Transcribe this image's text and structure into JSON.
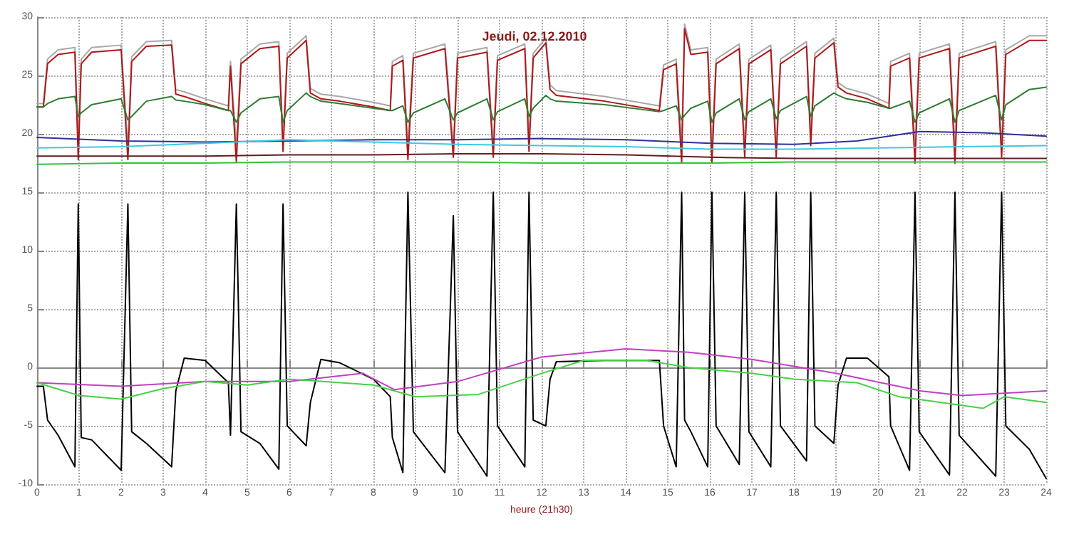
{
  "chart_data": {
    "type": "line",
    "title": "Jeudi, 02.12.2010",
    "xlabel": "heure (21h30)",
    "xlim": [
      0,
      24
    ],
    "xticks": [
      0,
      1,
      2,
      3,
      4,
      5,
      6,
      7,
      8,
      9,
      10,
      11,
      12,
      13,
      14,
      15,
      16,
      17,
      18,
      19,
      20,
      21,
      22,
      23,
      24
    ],
    "ylim": [
      -10,
      30
    ],
    "yticks": [
      -10,
      -5,
      0,
      5,
      10,
      15,
      20,
      25,
      30
    ],
    "grid": true,
    "marker": "none",
    "line_style": "solid",
    "series": [
      {
        "color": "#a8a8a8",
        "x": [
          0,
          0.15,
          0.25,
          0.5,
          0.9,
          0.98,
          1.05,
          1.3,
          2.0,
          2.16,
          2.25,
          2.6,
          3.2,
          3.3,
          3.5,
          4.0,
          4.55,
          4.6,
          4.74,
          4.85,
          5.3,
          5.75,
          5.85,
          5.95,
          6.4,
          6.5,
          6.75,
          7.2,
          8.0,
          8.4,
          8.45,
          8.7,
          8.82,
          8.95,
          9.7,
          9.9,
          10.0,
          10.7,
          10.85,
          10.95,
          11.6,
          11.7,
          11.8,
          12.1,
          12.2,
          12.35,
          13.5,
          14.8,
          14.9,
          15.2,
          15.33,
          15.4,
          15.55,
          15.95,
          16.05,
          16.15,
          16.7,
          16.83,
          16.93,
          17.45,
          17.58,
          17.68,
          18.3,
          18.4,
          18.5,
          18.95,
          19.05,
          19.25,
          19.75,
          20.26,
          20.3,
          20.75,
          20.88,
          20.98,
          21.7,
          21.83,
          21.93,
          22.8,
          22.94,
          23.04,
          23.6,
          24
        ],
        "values": [
          22.6,
          22.6,
          26.4,
          27.2,
          27.4,
          19,
          26.4,
          27.4,
          27.6,
          19,
          26.6,
          27.9,
          28,
          23.8,
          23.6,
          23,
          22.4,
          26.2,
          19,
          26.4,
          27.7,
          27.9,
          19.5,
          26.9,
          28.4,
          23.9,
          23.4,
          23.2,
          22.7,
          22.4,
          26.2,
          26.7,
          19,
          26.9,
          27.7,
          19,
          26.9,
          27.4,
          19,
          26.7,
          27.7,
          19.5,
          26.9,
          28.2,
          24.2,
          23.7,
          23.2,
          22.4,
          25.9,
          26.4,
          19,
          29.4,
          27.2,
          27.4,
          19,
          26.4,
          27.7,
          19,
          26.4,
          27.6,
          19,
          26.4,
          27.9,
          20,
          26.9,
          28.2,
          24.4,
          23.9,
          23.4,
          22.6,
          26.2,
          26.9,
          19,
          26.9,
          27.7,
          19,
          26.9,
          27.9,
          19,
          27.2,
          28.4,
          28.4
        ]
      },
      {
        "color": "#b01818",
        "x": [
          0,
          0.15,
          0.25,
          0.5,
          0.9,
          0.98,
          1.05,
          1.3,
          2.0,
          2.16,
          2.25,
          2.6,
          3.2,
          3.3,
          3.5,
          4.0,
          4.55,
          4.6,
          4.74,
          4.85,
          5.3,
          5.75,
          5.85,
          5.95,
          6.4,
          6.5,
          6.75,
          7.2,
          8.0,
          8.4,
          8.45,
          8.7,
          8.82,
          8.95,
          9.7,
          9.9,
          10.0,
          10.7,
          10.85,
          10.95,
          11.6,
          11.7,
          11.8,
          12.1,
          12.2,
          12.35,
          13.5,
          14.8,
          14.9,
          15.2,
          15.33,
          15.4,
          15.55,
          15.95,
          16.05,
          16.15,
          16.7,
          16.83,
          16.93,
          17.45,
          17.58,
          17.68,
          18.3,
          18.4,
          18.5,
          18.95,
          19.05,
          19.25,
          19.75,
          20.26,
          20.3,
          20.75,
          20.88,
          20.98,
          21.7,
          21.83,
          21.93,
          22.8,
          22.94,
          23.04,
          23.6,
          24
        ],
        "values": [
          22.3,
          22.3,
          26,
          26.8,
          27,
          17.8,
          26,
          27,
          27.2,
          17.8,
          26.2,
          27.5,
          27.6,
          23.4,
          23.2,
          22.6,
          22,
          25.8,
          17.6,
          26,
          27.3,
          27.5,
          18.5,
          26.5,
          28,
          23.5,
          23,
          22.8,
          22.3,
          22,
          25.8,
          26.3,
          17.8,
          26.5,
          27.3,
          18,
          26.5,
          27,
          18,
          26.3,
          27.3,
          18.5,
          26.5,
          27.8,
          23.8,
          23.3,
          22.8,
          22,
          25.5,
          26,
          17.5,
          29,
          26.8,
          27,
          17.5,
          26,
          27.3,
          18,
          26,
          27.2,
          18,
          26,
          27.5,
          19,
          26.5,
          27.8,
          24,
          23.5,
          23,
          22.2,
          25.8,
          26.5,
          17.5,
          26.5,
          27.3,
          17.5,
          26.5,
          27.5,
          18,
          26.8,
          28,
          28
        ]
      },
      {
        "color": "#2e7d32",
        "x": [
          0,
          0.15,
          0.25,
          0.5,
          0.9,
          0.98,
          1.05,
          1.3,
          2.0,
          2.16,
          2.25,
          2.6,
          3.2,
          3.3,
          3.5,
          4.0,
          4.55,
          4.6,
          4.74,
          4.85,
          5.3,
          5.75,
          5.85,
          5.95,
          6.4,
          6.5,
          6.75,
          7.2,
          8.0,
          8.4,
          8.45,
          8.7,
          8.82,
          8.95,
          9.7,
          9.9,
          10.0,
          10.7,
          10.85,
          10.95,
          11.6,
          11.7,
          11.8,
          12.1,
          12.2,
          12.35,
          13.5,
          14.8,
          14.9,
          15.2,
          15.33,
          15.4,
          15.55,
          15.95,
          16.05,
          16.15,
          16.7,
          16.83,
          16.93,
          17.45,
          17.58,
          17.68,
          18.3,
          18.4,
          18.5,
          18.95,
          19.05,
          19.25,
          19.75,
          20.26,
          20.3,
          20.75,
          20.88,
          20.98,
          21.7,
          21.83,
          21.93,
          22.8,
          22.94,
          23.04,
          23.6,
          24
        ],
        "values": [
          22.3,
          22.3,
          22.6,
          23,
          23.2,
          21.5,
          21.8,
          22.5,
          23,
          21.2,
          21.5,
          22.8,
          23.2,
          22.9,
          22.8,
          22.5,
          22,
          22,
          21,
          21.8,
          23,
          23.2,
          21,
          22,
          23.5,
          23.2,
          22.8,
          22.6,
          22.2,
          22,
          22,
          22.4,
          21,
          21.8,
          23,
          21.2,
          21.8,
          23,
          21.2,
          21.9,
          23,
          21.5,
          22.2,
          23.3,
          23,
          22.8,
          22.5,
          21.9,
          22,
          22.4,
          21.2,
          21.6,
          22.2,
          22.8,
          21,
          21.8,
          23,
          21.2,
          21.9,
          23,
          21.3,
          22,
          23.2,
          21.5,
          22.4,
          23.5,
          23.3,
          23,
          22.7,
          22.2,
          22.2,
          22.8,
          21,
          21.8,
          23,
          21,
          22,
          23.3,
          21.2,
          22.5,
          23.8,
          24
        ]
      },
      {
        "color": "#000000",
        "x": [
          0,
          0.15,
          0.25,
          0.5,
          0.9,
          0.98,
          1.05,
          1.3,
          2.0,
          2.16,
          2.25,
          2.6,
          3.2,
          3.3,
          3.5,
          4.0,
          4.55,
          4.6,
          4.74,
          4.85,
          5.3,
          5.75,
          5.85,
          5.95,
          6.4,
          6.5,
          6.75,
          7.2,
          8.0,
          8.4,
          8.45,
          8.7,
          8.82,
          8.95,
          9.7,
          9.9,
          10.0,
          10.7,
          10.85,
          10.95,
          11.6,
          11.7,
          11.8,
          12.1,
          12.2,
          12.35,
          13.5,
          14.8,
          14.9,
          15.2,
          15.33,
          15.4,
          15.55,
          15.95,
          16.05,
          16.15,
          16.7,
          16.83,
          16.93,
          17.45,
          17.58,
          17.68,
          18.3,
          18.4,
          18.5,
          18.95,
          19.05,
          19.25,
          19.75,
          20.26,
          20.3,
          20.75,
          20.88,
          20.98,
          21.7,
          21.83,
          21.93,
          22.8,
          22.94,
          23.04,
          23.6,
          24
        ],
        "values": [
          -1.6,
          -1.6,
          -4.5,
          -5.8,
          -8.5,
          14,
          -6,
          -6.2,
          -8.8,
          14,
          -5.5,
          -6.5,
          -8.5,
          -2,
          0.8,
          0.6,
          -1.3,
          -5.8,
          14,
          -5.5,
          -6.5,
          -8.7,
          14,
          -5,
          -6.7,
          -3,
          0.7,
          0.4,
          -1,
          -2.5,
          -6,
          -9,
          15,
          -5.5,
          -9,
          13,
          -5.5,
          -9.3,
          15,
          -5,
          -8.5,
          15,
          -4.5,
          -5,
          -1,
          0.5,
          0.6,
          0.6,
          -5,
          -8.5,
          15,
          -4.5,
          -5.5,
          -8.5,
          15,
          -5,
          -8.3,
          15,
          -5.5,
          -8.5,
          15,
          -5,
          -8,
          15,
          -5,
          -6.5,
          -1.5,
          0.8,
          0.8,
          -0.8,
          -5,
          -8.8,
          15,
          -5.5,
          -9.2,
          15,
          -5.8,
          -9.3,
          15,
          -5,
          -7,
          -9.5
        ]
      },
      {
        "color": "#30309a",
        "x": [
          0,
          2,
          4,
          6,
          8,
          10,
          12,
          14,
          16,
          18,
          19.5,
          21,
          22.5,
          24
        ],
        "values": [
          19.7,
          19.4,
          19.3,
          19.4,
          19.5,
          19.5,
          19.6,
          19.5,
          19.2,
          19.1,
          19.4,
          20.2,
          20.1,
          19.8
        ]
      },
      {
        "color": "#40c8e0",
        "x": [
          0,
          2,
          4,
          6,
          8,
          10,
          12,
          14,
          16,
          18,
          20,
          22,
          24
        ],
        "values": [
          18.8,
          18.9,
          19.2,
          19.5,
          19.3,
          19.1,
          19,
          18.9,
          18.7,
          18.7,
          18.8,
          18.9,
          19
        ]
      },
      {
        "color": "#602020",
        "x": [
          0,
          2,
          4,
          6,
          8,
          10,
          12,
          14,
          16,
          18,
          20,
          22,
          24
        ],
        "values": [
          18.1,
          18.1,
          18.1,
          18.2,
          18.2,
          18.3,
          18.3,
          18.2,
          18,
          17.9,
          17.9,
          17.9,
          17.9
        ]
      },
      {
        "color": "#38c038",
        "x": [
          0,
          2,
          4,
          6,
          8,
          10,
          12,
          14,
          16,
          18,
          20,
          22,
          24
        ],
        "values": [
          17.4,
          17.5,
          17.5,
          17.6,
          17.6,
          17.6,
          17.5,
          17.5,
          17.5,
          17.6,
          17.6,
          17.6,
          17.6
        ]
      },
      {
        "color": "#c040c0",
        "x": [
          0,
          2,
          4,
          6,
          7.75,
          8.5,
          10,
          12,
          14,
          15.5,
          17,
          19,
          21,
          22,
          24
        ],
        "values": [
          -1.3,
          -1.6,
          -1.2,
          -1.2,
          -0.5,
          -1.9,
          -1.2,
          0.9,
          1.6,
          1.3,
          0.7,
          -0.5,
          -2,
          -2.4,
          -2
        ]
      },
      {
        "color": "#48d048",
        "x": [
          0,
          1,
          2,
          3,
          4,
          5,
          6,
          8,
          9,
          10.5,
          12,
          13,
          14.5,
          15.5,
          17,
          18,
          19.5,
          20.5,
          21.5,
          22.5,
          23,
          24
        ],
        "values": [
          -1.3,
          -2.4,
          -2.7,
          -1.8,
          -1.2,
          -1.5,
          -1,
          -1.5,
          -2.5,
          -2.3,
          -0.5,
          0.6,
          0.6,
          0,
          -0.5,
          -1,
          -1.3,
          -2.5,
          -3,
          -3.5,
          -2.5,
          -3
        ]
      }
    ]
  }
}
